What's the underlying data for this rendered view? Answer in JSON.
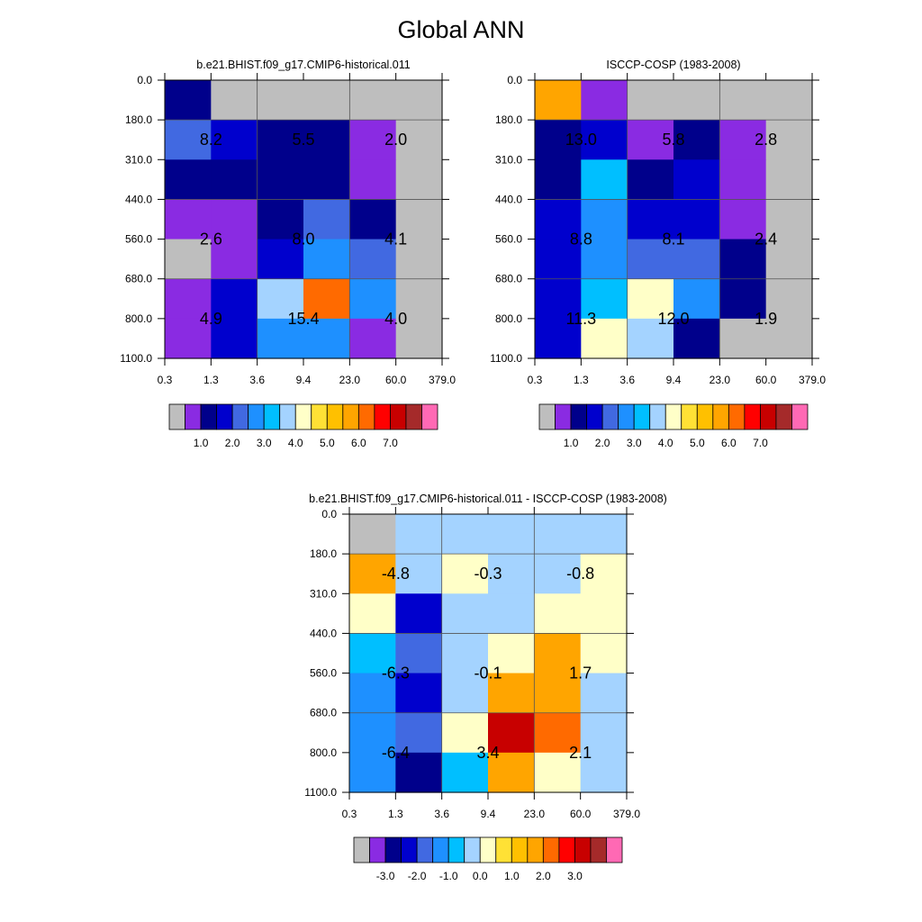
{
  "title": "Global ANN",
  "chart_data": [
    {
      "type": "heatmap",
      "title": "b.e21.BHIST.f09_g17.CMIP6-historical.011",
      "x_ticks": [
        "0.3",
        "1.3",
        "3.6",
        "9.4",
        "23.0",
        "60.0",
        "379.0"
      ],
      "y_ticks": [
        "0.0",
        "180.0",
        "310.0",
        "440.0",
        "560.0",
        "680.0",
        "800.0",
        "1100.0"
      ],
      "cells": [
        [
          "c3",
          "c1",
          "c1",
          "c1",
          "c1",
          "c1"
        ],
        [
          "c5",
          "c4",
          "c3",
          "c3",
          "c2",
          "c1"
        ],
        [
          "c3",
          "c3",
          "c3",
          "c3",
          "c2",
          "c1"
        ],
        [
          "c2",
          "c2",
          "c3",
          "c5",
          "c3",
          "c1"
        ],
        [
          "c1",
          "c2",
          "c4",
          "c7",
          "c5",
          "c1"
        ],
        [
          "c2",
          "c4",
          "c9",
          "c13",
          "c7",
          "c1"
        ],
        [
          "c2",
          "c4",
          "c7",
          "c7",
          "c2",
          "c1"
        ]
      ],
      "annotations": [
        {
          "row": 1.5,
          "col": 1,
          "text": "8.2"
        },
        {
          "row": 1.5,
          "col": 3,
          "text": "5.5"
        },
        {
          "row": 1.5,
          "col": 5,
          "text": "2.0"
        },
        {
          "row": 4,
          "col": 1,
          "text": "2.6"
        },
        {
          "row": 4,
          "col": 3,
          "text": "8.0"
        },
        {
          "row": 4,
          "col": 5,
          "text": "4.1"
        },
        {
          "row": 6,
          "col": 1,
          "text": "4.9"
        },
        {
          "row": 6,
          "col": 3,
          "text": "15.4"
        },
        {
          "row": 6,
          "col": 5,
          "text": "4.0"
        }
      ],
      "colorbar_labels": [
        "1.0",
        "2.0",
        "3.0",
        "4.0",
        "5.0",
        "6.0",
        "7.0"
      ]
    },
    {
      "type": "heatmap",
      "title": "ISCCP-COSP (1983-2008)",
      "x_ticks": [
        "0.3",
        "1.3",
        "3.6",
        "9.4",
        "23.0",
        "60.0",
        "379.0"
      ],
      "y_ticks": [
        "0.0",
        "180.0",
        "310.0",
        "440.0",
        "560.0",
        "680.0",
        "800.0",
        "1100.0"
      ],
      "cells": [
        [
          "c11",
          "c2",
          "c1",
          "c1",
          "c1",
          "c1"
        ],
        [
          "c3",
          "c4",
          "c2",
          "c3",
          "c2",
          "c1"
        ],
        [
          "c3",
          "c8",
          "c3",
          "c4",
          "c2",
          "c1"
        ],
        [
          "c4",
          "c7",
          "c4",
          "c4",
          "c2",
          "c1"
        ],
        [
          "c4",
          "c7",
          "c5",
          "c5",
          "c3",
          "c1"
        ],
        [
          "c4",
          "c8",
          "c10",
          "c7",
          "c3",
          "c1"
        ],
        [
          "c4",
          "c10",
          "c9",
          "c3",
          "c1",
          "c1"
        ]
      ],
      "annotations": [
        {
          "row": 1.5,
          "col": 1,
          "text": "13.0"
        },
        {
          "row": 1.5,
          "col": 3,
          "text": "5.8"
        },
        {
          "row": 1.5,
          "col": 5,
          "text": "2.8"
        },
        {
          "row": 4,
          "col": 1,
          "text": "8.8"
        },
        {
          "row": 4,
          "col": 3,
          "text": "8.1"
        },
        {
          "row": 4,
          "col": 5,
          "text": "2.4"
        },
        {
          "row": 6,
          "col": 1,
          "text": "11.3"
        },
        {
          "row": 6,
          "col": 3,
          "text": "12.0"
        },
        {
          "row": 6,
          "col": 5,
          "text": "1.9"
        }
      ],
      "colorbar_labels": [
        "1.0",
        "2.0",
        "3.0",
        "4.0",
        "5.0",
        "6.0",
        "7.0"
      ]
    },
    {
      "type": "heatmap",
      "title": "b.e21.BHIST.f09_g17.CMIP6-historical.011 - ISCCP-COSP (1983-2008)",
      "x_ticks": [
        "0.3",
        "1.3",
        "3.6",
        "9.4",
        "23.0",
        "60.0",
        "379.0"
      ],
      "y_ticks": [
        "0.0",
        "180.0",
        "310.0",
        "440.0",
        "560.0",
        "680.0",
        "800.0",
        "1100.0"
      ],
      "cells": [
        [
          "c1",
          "c9",
          "c9",
          "c9",
          "c9",
          "c9"
        ],
        [
          "c12",
          "c9",
          "c10",
          "c9",
          "c9",
          "c10"
        ],
        [
          "c10",
          "c4",
          "c9",
          "c9",
          "c10",
          "c10"
        ],
        [
          "c8",
          "c5",
          "c9",
          "c10",
          "c11",
          "c10"
        ],
        [
          "c7",
          "c4",
          "c9",
          "c11",
          "c12",
          "c9"
        ],
        [
          "c7",
          "c5",
          "c10",
          "c15",
          "c13",
          "c9"
        ],
        [
          "c7",
          "c3",
          "c8",
          "c12",
          "c10",
          "c9"
        ]
      ],
      "annotations": [
        {
          "row": 1.5,
          "col": 1,
          "text": "-4.8"
        },
        {
          "row": 1.5,
          "col": 3,
          "text": "-0.3"
        },
        {
          "row": 1.5,
          "col": 5,
          "text": "-0.8"
        },
        {
          "row": 4,
          "col": 1,
          "text": "-6.3"
        },
        {
          "row": 4,
          "col": 3,
          "text": "-0.1"
        },
        {
          "row": 4,
          "col": 5,
          "text": "1.7"
        },
        {
          "row": 6,
          "col": 1,
          "text": "-6.4"
        },
        {
          "row": 6,
          "col": 3,
          "text": "3.4"
        },
        {
          "row": 6,
          "col": 5,
          "text": "2.1"
        }
      ],
      "colorbar_labels": [
        "-3.0",
        "-2.0",
        "-1.0",
        "0.0",
        "1.0",
        "2.0",
        "3.0"
      ]
    }
  ],
  "palette": {
    "c0": "#BEBEBE",
    "c1": "#BEBEBE",
    "c2": "#8A2BE2",
    "c3": "#00008B",
    "c4": "#0000CD",
    "c5": "#4169E1",
    "c6": "#1E90FF",
    "c7": "#1E90FF",
    "c8": "#00BFFF",
    "c9": "#A4D3FF",
    "c10": "#FFFFC8",
    "c11": "#FFA500",
    "c12": "#FFA500",
    "c13": "#FF6A00",
    "c14": "#FF0000",
    "c15": "#C80000"
  },
  "colorbar_colors": [
    "#BEBEBE",
    "#8A2BE2",
    "#00008B",
    "#0000CD",
    "#4169E1",
    "#1E90FF",
    "#00BFFF",
    "#A4D3FF",
    "#FFFFC8",
    "#FFE135",
    "#FFC000",
    "#FFA500",
    "#FF6A00",
    "#FF0000",
    "#C80000",
    "#A52A2A",
    "#FF69B4"
  ]
}
